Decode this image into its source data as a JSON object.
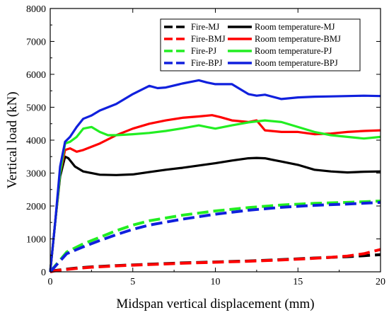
{
  "chart_data": {
    "type": "line",
    "xlabel": "Midspan vertical displacement (mm)",
    "ylabel": "Vertical load (kN)",
    "xlim": [
      0,
      20
    ],
    "ylim": [
      0,
      8000
    ],
    "xticks": [
      0,
      5,
      10,
      15,
      20
    ],
    "yticks": [
      0,
      1000,
      2000,
      3000,
      4000,
      5000,
      6000,
      7000,
      8000
    ],
    "grid": false,
    "legend_position": "top-right",
    "series": [
      {
        "name": "Fire-MJ",
        "color": "#000000",
        "style": "dashed",
        "x": [
          0,
          0.3,
          0.8,
          1.5,
          2.5,
          4,
          6,
          8,
          10,
          12,
          14,
          16,
          18,
          19,
          20
        ],
        "y": [
          0,
          40,
          70,
          110,
          150,
          190,
          230,
          270,
          300,
          330,
          370,
          420,
          460,
          490,
          520
        ]
      },
      {
        "name": "Fire-BMJ",
        "color": "#ff0000",
        "style": "dashed",
        "x": [
          0,
          0.3,
          0.8,
          1.5,
          2.5,
          4,
          6,
          8,
          10,
          12,
          14,
          16,
          17,
          18,
          19,
          20
        ],
        "y": [
          0,
          30,
          60,
          100,
          140,
          180,
          220,
          260,
          290,
          320,
          360,
          410,
          440,
          480,
          550,
          680
        ]
      },
      {
        "name": "Fire-PJ",
        "color": "#22ee22",
        "style": "dashed",
        "x": [
          0,
          1,
          2,
          3,
          4,
          5,
          6,
          8,
          10,
          12,
          14,
          16,
          18,
          20
        ],
        "y": [
          0,
          600,
          850,
          1050,
          1250,
          1420,
          1550,
          1720,
          1850,
          1950,
          2030,
          2080,
          2110,
          2150
        ]
      },
      {
        "name": "Fire-BPJ",
        "color": "#1020dd",
        "style": "dashed",
        "x": [
          0,
          1,
          2,
          3,
          4,
          5,
          6,
          8,
          10,
          12,
          14,
          16,
          18,
          20
        ],
        "y": [
          0,
          550,
          760,
          950,
          1130,
          1290,
          1420,
          1600,
          1750,
          1870,
          1960,
          2020,
          2060,
          2110
        ]
      },
      {
        "name": "Room temperature-MJ",
        "color": "#000000",
        "style": "solid",
        "x": [
          0,
          0.3,
          0.6,
          0.9,
          1.1,
          1.5,
          2,
          3,
          4,
          5,
          6,
          7,
          8,
          9,
          10,
          11,
          12,
          12.5,
          13,
          13.5,
          14,
          15,
          16,
          17,
          18,
          19,
          20
        ],
        "y": [
          0,
          1500,
          2900,
          3500,
          3450,
          3200,
          3050,
          2950,
          2940,
          2960,
          3030,
          3100,
          3160,
          3230,
          3300,
          3380,
          3450,
          3460,
          3450,
          3400,
          3350,
          3250,
          3100,
          3050,
          3020,
          3040,
          3050
        ]
      },
      {
        "name": "Room temperature-BMJ",
        "color": "#ff0000",
        "style": "solid",
        "x": [
          0,
          0.3,
          0.6,
          0.9,
          1.2,
          1.6,
          2,
          3,
          4,
          5,
          6,
          7,
          8,
          9,
          9.8,
          10.3,
          11,
          12,
          12.5,
          13,
          14,
          15,
          16,
          17,
          18,
          19,
          20
        ],
        "y": [
          0,
          1500,
          3000,
          3700,
          3750,
          3650,
          3700,
          3900,
          4150,
          4350,
          4500,
          4600,
          4680,
          4720,
          4760,
          4700,
          4600,
          4550,
          4600,
          4300,
          4250,
          4250,
          4180,
          4200,
          4250,
          4280,
          4300
        ]
      },
      {
        "name": "Room temperature-PJ",
        "color": "#22ee22",
        "style": "solid",
        "x": [
          0,
          0.3,
          0.6,
          0.9,
          1.2,
          1.6,
          2,
          2.5,
          3,
          3.5,
          4,
          5,
          6,
          7,
          8,
          9,
          9.5,
          10,
          11,
          12,
          13,
          14,
          15,
          16,
          17,
          18,
          19,
          20
        ],
        "y": [
          0,
          1500,
          3000,
          3900,
          3950,
          4100,
          4350,
          4400,
          4250,
          4150,
          4150,
          4180,
          4220,
          4280,
          4360,
          4450,
          4400,
          4350,
          4450,
          4540,
          4600,
          4550,
          4400,
          4250,
          4150,
          4100,
          4050,
          4100
        ]
      },
      {
        "name": "Room temperature-BPJ",
        "color": "#1020dd",
        "style": "solid",
        "x": [
          0,
          0.3,
          0.6,
          0.9,
          1.2,
          1.6,
          2,
          2.5,
          3,
          4,
          5,
          6,
          6.5,
          7,
          8,
          9,
          9.5,
          10,
          11,
          12,
          12.5,
          13,
          14,
          15,
          16,
          17,
          18,
          19,
          20
        ],
        "y": [
          0,
          1500,
          3200,
          3950,
          4100,
          4400,
          4650,
          4750,
          4900,
          5100,
          5400,
          5650,
          5580,
          5600,
          5720,
          5820,
          5750,
          5700,
          5700,
          5400,
          5350,
          5380,
          5250,
          5300,
          5320,
          5330,
          5340,
          5350,
          5340
        ]
      }
    ]
  }
}
